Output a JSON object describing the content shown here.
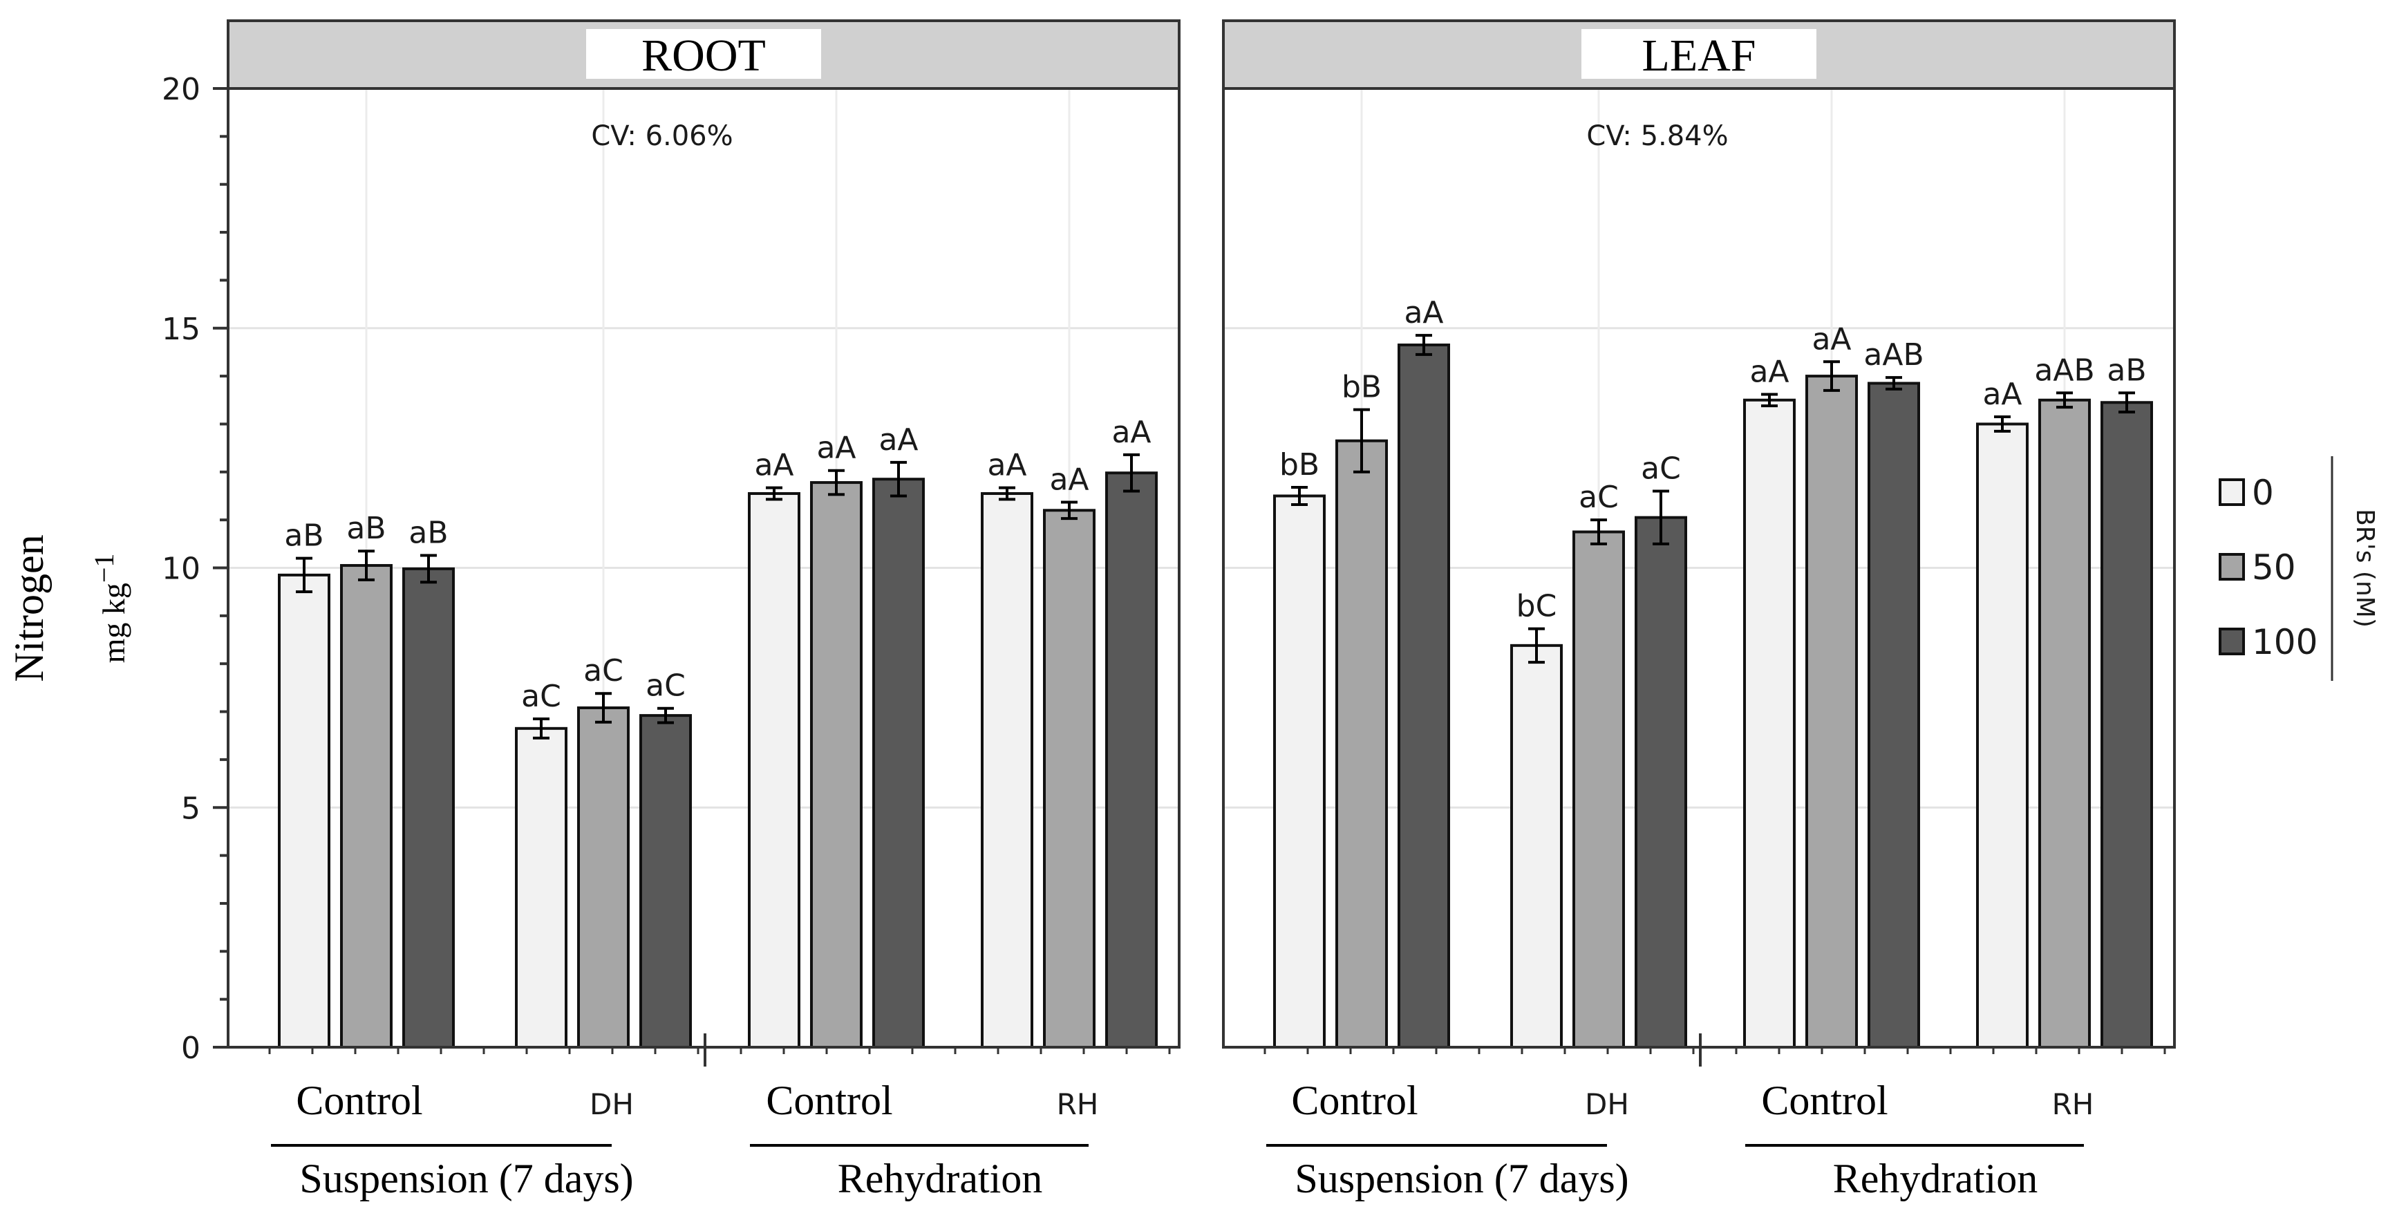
{
  "chart_data": {
    "type": "bar",
    "ylabel": "Nitrogen",
    "yunit_base": "mg kg",
    "yunit_exp": "−1",
    "ylim": [
      0,
      20
    ],
    "yticks": [
      0,
      5,
      10,
      15,
      20
    ],
    "legend": {
      "title": "BR's (nM)",
      "entries": [
        {
          "label": "0",
          "color": "#f2f2f2"
        },
        {
          "label": "50",
          "color": "#a6a6a6"
        },
        {
          "label": "100",
          "color": "#595959"
        }
      ]
    },
    "panels": [
      {
        "title": "ROOT",
        "cv": "CV: 6.06%",
        "groups": [
          {
            "label": "Control",
            "values": [
              9.85,
              10.05,
              9.98
            ],
            "errors": [
              0.35,
              0.3,
              0.28
            ],
            "letters": [
              "aB",
              "aB",
              "aB"
            ]
          },
          {
            "label": "DH",
            "values": [
              6.65,
              7.08,
              6.92
            ],
            "errors": [
              0.2,
              0.3,
              0.15
            ],
            "letters": [
              "aC",
              "aC",
              "aC"
            ]
          },
          {
            "label": "Control",
            "values": [
              11.55,
              11.78,
              11.85
            ],
            "errors": [
              0.12,
              0.25,
              0.35
            ],
            "letters": [
              "aA",
              "aA",
              "aA"
            ]
          },
          {
            "label": "RH",
            "values": [
              11.55,
              11.2,
              11.98
            ],
            "errors": [
              0.12,
              0.17,
              0.38
            ],
            "letters": [
              "aA",
              "aA",
              "aA"
            ]
          }
        ],
        "sections": [
          {
            "label": "Suspension (7 days)",
            "groups": [
              0,
              1
            ]
          },
          {
            "label": "Rehydration",
            "groups": [
              2,
              3
            ]
          }
        ]
      },
      {
        "title": "LEAF",
        "cv": "CV: 5.84%",
        "groups": [
          {
            "label": "Control",
            "values": [
              11.5,
              12.65,
              14.65
            ],
            "errors": [
              0.18,
              0.65,
              0.2
            ],
            "letters": [
              "bB",
              "bB",
              "aA"
            ]
          },
          {
            "label": "DH",
            "values": [
              8.38,
              10.75,
              11.05
            ],
            "errors": [
              0.35,
              0.25,
              0.55
            ],
            "letters": [
              "bC",
              "aC",
              "aC"
            ]
          },
          {
            "label": "Control",
            "values": [
              13.5,
              14.0,
              13.85
            ],
            "errors": [
              0.12,
              0.3,
              0.12
            ],
            "letters": [
              "aA",
              "aA",
              "aAB"
            ]
          },
          {
            "label": "RH",
            "values": [
              13.0,
              13.5,
              13.45
            ],
            "errors": [
              0.15,
              0.15,
              0.2
            ],
            "letters": [
              "aA",
              "aAB",
              "aB"
            ]
          }
        ],
        "sections": [
          {
            "label": "Suspension (7 days)",
            "groups": [
              0,
              1
            ]
          },
          {
            "label": "Rehydration",
            "groups": [
              2,
              3
            ]
          }
        ]
      }
    ]
  }
}
